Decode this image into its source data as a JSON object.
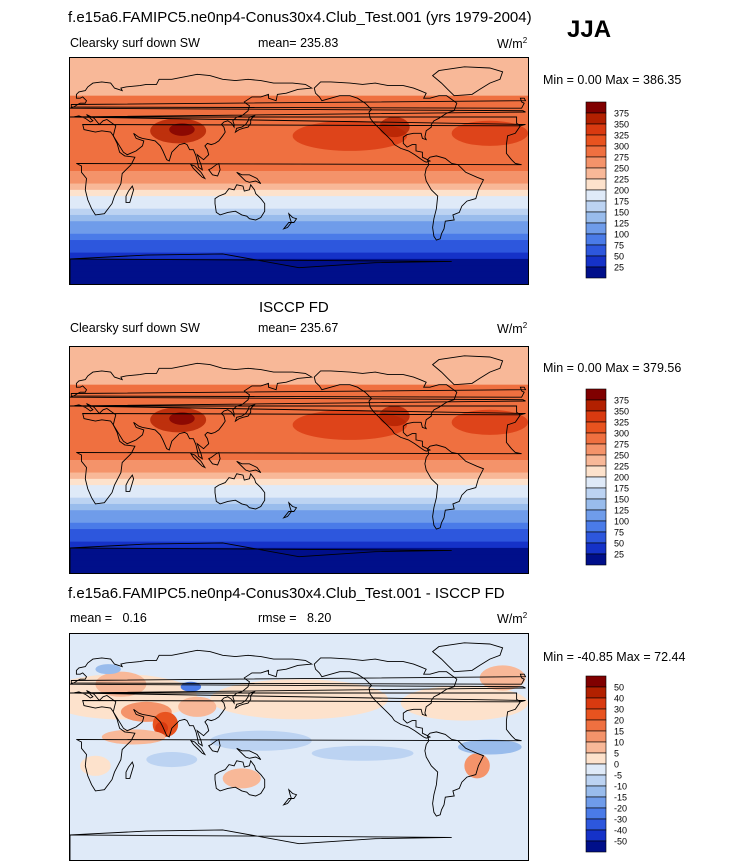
{
  "header": {
    "title": "f.e15a6.FAMIPC5.ne0np4-Conus30x4.Club_Test.001 (yrs 1979-2004)",
    "season": "JJA"
  },
  "panels": [
    {
      "id": "model",
      "section_title": "",
      "variable": "Clearsky surf down SW",
      "stat_label": "mean=",
      "stat_value": "235.83",
      "units": "W/m",
      "units_exp": "2",
      "minmax": "Min =   0.00 Max = 386.35",
      "colorbar": {
        "labels": [
          "375",
          "350",
          "325",
          "300",
          "275",
          "250",
          "225",
          "200",
          "175",
          "150",
          "125",
          "100",
          "75",
          "50",
          "25"
        ],
        "colors": [
          "#800000",
          "#b22000",
          "#d93a10",
          "#e8531f",
          "#ef7040",
          "#f4936a",
          "#f8b898",
          "#fde2cc",
          "#dfeaf8",
          "#bcd3f2",
          "#99bcec",
          "#6f9cea",
          "#4a7be8",
          "#2d57dd",
          "#1532c8",
          "#000f8a"
        ]
      }
    },
    {
      "id": "obs",
      "section_title": "ISCCP FD",
      "variable": "Clearsky surf down SW",
      "stat_label": "mean=",
      "stat_value": "235.67",
      "units": "W/m",
      "units_exp": "2",
      "minmax": "Min =   0.00 Max = 379.56",
      "colorbar": {
        "labels": [
          "375",
          "350",
          "325",
          "300",
          "275",
          "250",
          "225",
          "200",
          "175",
          "150",
          "125",
          "100",
          "75",
          "50",
          "25"
        ],
        "colors": [
          "#800000",
          "#b22000",
          "#d93a10",
          "#e8531f",
          "#ef7040",
          "#f4936a",
          "#f8b898",
          "#fde2cc",
          "#dfeaf8",
          "#bcd3f2",
          "#99bcec",
          "#6f9cea",
          "#4a7be8",
          "#2d57dd",
          "#1532c8",
          "#000f8a"
        ]
      }
    },
    {
      "id": "diff",
      "section_title": "f.e15a6.FAMIPC5.ne0np4-Conus30x4.Club_Test.001 - ISCCP FD",
      "variable": "",
      "stat_label": "mean =",
      "stat_value": "0.16",
      "rmse_label": "rmse =",
      "rmse_value": "8.20",
      "units": "W/m",
      "units_exp": "2",
      "minmax": "Min = -40.85 Max =  72.44",
      "colorbar": {
        "labels": [
          "50",
          "40",
          "30",
          "20",
          "15",
          "10",
          "5",
          "0",
          "-5",
          "-10",
          "-15",
          "-20",
          "-30",
          "-40",
          "-50"
        ],
        "colors": [
          "#800000",
          "#b22000",
          "#d93a10",
          "#e8531f",
          "#ef7040",
          "#f4936a",
          "#f8b898",
          "#fde2cc",
          "#dfeaf8",
          "#bcd3f2",
          "#99bcec",
          "#6f9cea",
          "#4a7be8",
          "#2d57dd",
          "#1532c8",
          "#000f8a"
        ]
      }
    }
  ],
  "map_data": {
    "projection": "cylindrical-equidistant",
    "center_longitude": 180,
    "field": "Clearsky surface downwelling shortwave",
    "units": "W/m2"
  }
}
